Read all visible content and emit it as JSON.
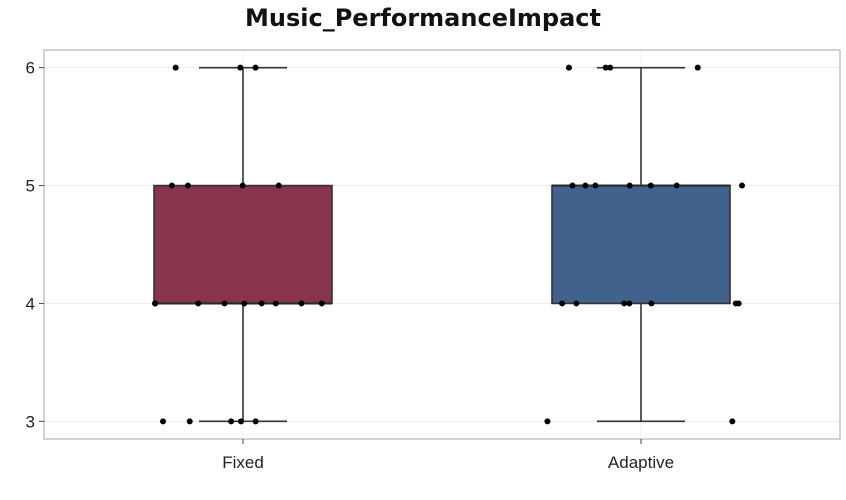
{
  "chart_data": {
    "type": "box",
    "title": "Music_PerformanceImpact",
    "xlabel": "",
    "ylabel": "",
    "categories": [
      "Fixed",
      "Adaptive"
    ],
    "ylim": [
      2.85,
      6.15
    ],
    "yticks": [
      3,
      4,
      5,
      6
    ],
    "grid": true,
    "series": [
      {
        "category": "Fixed",
        "color": "#7b1e3a",
        "stats": {
          "min": 3,
          "q1": 4,
          "median": 4,
          "q3": 5,
          "max": 6
        },
        "points": [
          3,
          3,
          3,
          3,
          3,
          4,
          4,
          4,
          4,
          4,
          4,
          4,
          4,
          4,
          5,
          5,
          5,
          5,
          6,
          6,
          6
        ]
      },
      {
        "category": "Adaptive",
        "color": "#2b5180",
        "stats": {
          "min": 3,
          "q1": 4,
          "median": 5,
          "q3": 5,
          "max": 6
        },
        "points": [
          3,
          3,
          4,
          4,
          4,
          4,
          4,
          4,
          4,
          5,
          5,
          5,
          5,
          5,
          5,
          5,
          6,
          6,
          6,
          6
        ]
      }
    ]
  }
}
